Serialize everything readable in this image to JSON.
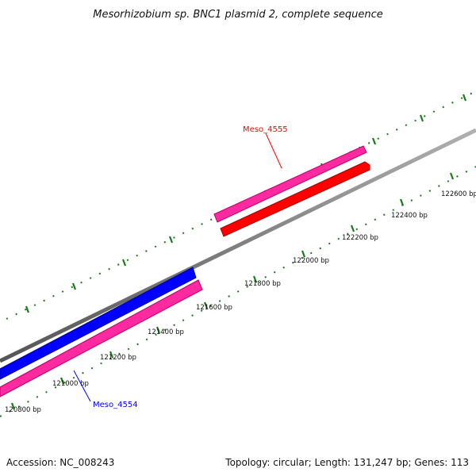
{
  "title": "Mesorhizobium sp. BNC1 plasmid 2, complete sequence",
  "footer": {
    "accession": "Accession: NC_008243",
    "summary": "Topology: circular; Length: 131,247 bp; Genes: 113"
  },
  "scale_labels": [
    "120800 bp",
    "121000 bp",
    "121200 bp",
    "121400 bp",
    "121600 bp",
    "121800 bp",
    "122000 bp",
    "122200 bp",
    "122400 bp",
    "122600 bp"
  ],
  "genes": [
    {
      "name": "Meso_4555",
      "color": "#ff0000"
    },
    {
      "name": "Meso_4554",
      "color": "#0000ff"
    }
  ],
  "colors": {
    "backbone": "#808080",
    "cds": "#ff2aa0",
    "forward_gene": "#ff0000",
    "reverse_gene": "#0000ff",
    "ticks": "#1a7a1a"
  }
}
